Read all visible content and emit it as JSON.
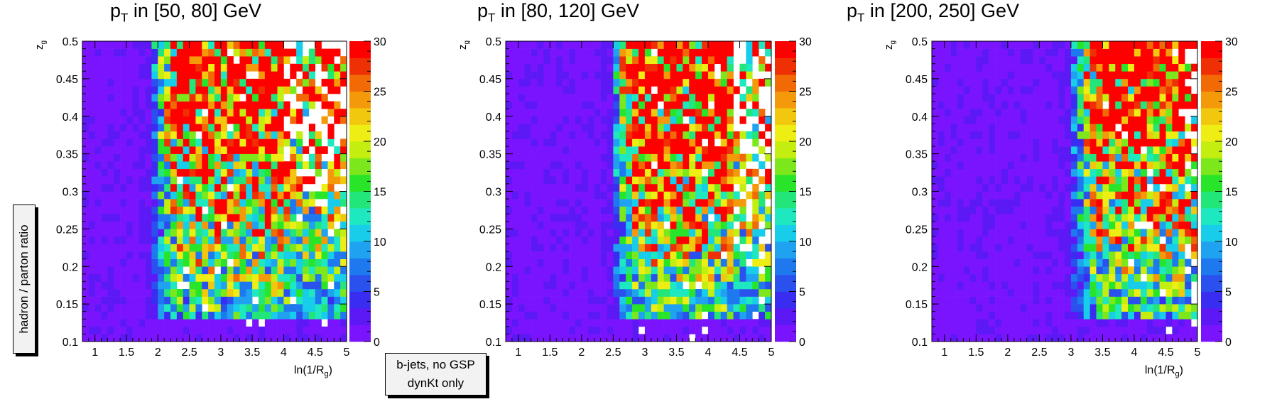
{
  "figure": {
    "ylabel_box": "hadron / parton ratio",
    "note_box": [
      "b-jets, no GSP",
      "dynKt only"
    ]
  },
  "chart_data": [
    {
      "type": "heatmap",
      "title": "p_T in [50, 80] GeV",
      "title_parts": {
        "p": "p",
        "sub": "T",
        "rest": " in [50, 80] GeV"
      },
      "xlabel": "ln(1/R_g)",
      "ylabel": "z_g",
      "xlim": [
        0.8,
        5.0
      ],
      "ylim": [
        0.1,
        0.5
      ],
      "xticks": [
        1,
        1.5,
        2,
        2.5,
        3,
        3.5,
        4,
        4.5,
        5
      ],
      "yticks": [
        0.1,
        0.15,
        0.2,
        0.25,
        0.3,
        0.35,
        0.4,
        0.45,
        0.5
      ],
      "zlim": [
        0,
        30
      ],
      "zticks": [
        0,
        5,
        10,
        15,
        20,
        25,
        30
      ],
      "bins": {
        "nx": 42,
        "ny": 40
      },
      "regions": {
        "onset": 1.85,
        "hot_start": 2.35,
        "hot_end": 4.1,
        "empty_start": 4.0,
        "empty_zg_max": 0.3
      }
    },
    {
      "type": "heatmap",
      "title": "p_T in [80, 120] GeV",
      "title_parts": {
        "p": "p",
        "sub": "T",
        "rest": " in [80, 120] GeV"
      },
      "xlabel": "",
      "ylabel": "z_g",
      "xlim": [
        0.8,
        5.0
      ],
      "ylim": [
        0.1,
        0.5
      ],
      "xticks": [
        1,
        1.5,
        2,
        2.5,
        3,
        3.5,
        4,
        4.5,
        5
      ],
      "yticks": [
        0.1,
        0.15,
        0.2,
        0.25,
        0.3,
        0.35,
        0.4,
        0.45,
        0.5
      ],
      "zlim": [
        0,
        30
      ],
      "zticks": [
        0,
        5,
        10,
        15,
        20,
        25,
        30
      ],
      "bins": {
        "nx": 42,
        "ny": 40
      },
      "regions": {
        "onset": 2.45,
        "hot_start": 2.85,
        "hot_end": 4.4,
        "empty_start": 4.35,
        "empty_zg_max": 0.2
      }
    },
    {
      "type": "heatmap",
      "title": "p_T in [200, 250] GeV",
      "title_parts": {
        "p": "p",
        "sub": "T",
        "rest": " in [200, 250] GeV"
      },
      "xlabel": "ln(1/R_g)",
      "ylabel": "z_g",
      "xlim": [
        0.8,
        5.0
      ],
      "ylim": [
        0.1,
        0.5
      ],
      "xticks": [
        1,
        1.5,
        2,
        2.5,
        3,
        3.5,
        4,
        4.5,
        5
      ],
      "yticks": [
        0.1,
        0.15,
        0.2,
        0.25,
        0.3,
        0.35,
        0.4,
        0.45,
        0.5
      ],
      "zlim": [
        0,
        30
      ],
      "zticks": [
        0,
        5,
        10,
        15,
        20,
        25,
        30
      ],
      "bins": {
        "nx": 42,
        "ny": 40
      },
      "regions": {
        "onset": 2.95,
        "hot_start": 3.45,
        "hot_end": 5.0,
        "empty_start": 4.8,
        "empty_zg_max": 0.12
      }
    }
  ]
}
